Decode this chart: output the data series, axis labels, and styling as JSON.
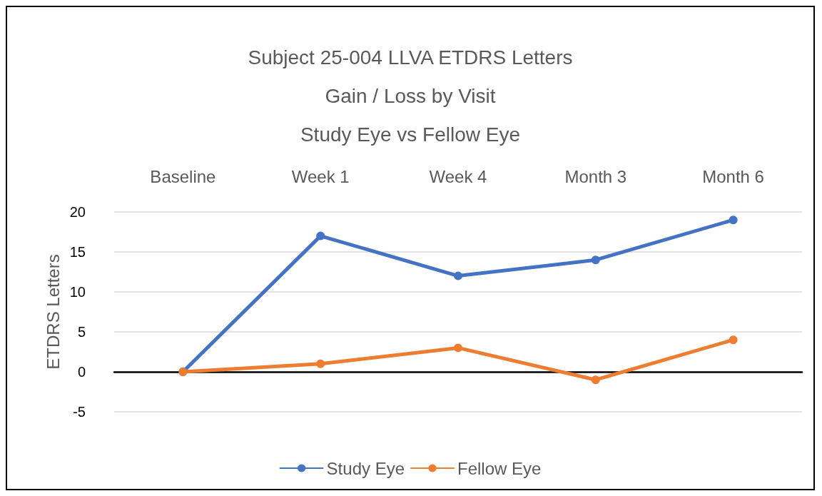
{
  "chart_data": {
    "type": "line",
    "title": "Subject 25-004 LLVA ETDRS Letters\nGain / Loss by Visit\nStudy Eye vs Fellow Eye",
    "ylabel": "ETDRS Letters",
    "categories": [
      "Baseline",
      "Week 1",
      "Week 4",
      "Month 3",
      "Month 6"
    ],
    "series": [
      {
        "name": "Study Eye",
        "color": "#4472c4",
        "values": [
          0,
          17,
          12,
          14,
          19
        ]
      },
      {
        "name": "Fellow Eye",
        "color": "#ed7d31",
        "values": [
          0,
          1,
          3,
          -1,
          4
        ]
      }
    ],
    "ylim": [
      -5,
      20
    ],
    "yticks": [
      -5,
      0,
      5,
      10,
      15,
      20
    ],
    "grid": "y",
    "legend": "bottom",
    "marker": "circle",
    "line_style": "solid"
  }
}
